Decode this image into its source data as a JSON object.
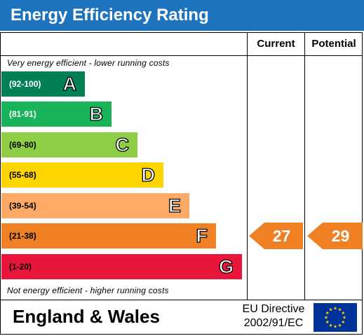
{
  "title": "Energy Efficiency Rating",
  "columns": {
    "current": "Current",
    "potential": "Potential"
  },
  "top_caption": "Very energy efficient - lower running costs",
  "bottom_caption": "Not energy efficient - higher running costs",
  "bands": [
    {
      "range": "(92-100)",
      "letter": "A",
      "color": "#008054",
      "range_color": "#ffffff"
    },
    {
      "range": "(81-91)",
      "letter": "B",
      "color": "#19b459",
      "range_color": "#ffffff"
    },
    {
      "range": "(69-80)",
      "letter": "C",
      "color": "#8dce46",
      "range_color": "#000000"
    },
    {
      "range": "(55-68)",
      "letter": "D",
      "color": "#ffd500",
      "range_color": "#000000"
    },
    {
      "range": "(39-54)",
      "letter": "E",
      "color": "#fcaa65",
      "range_color": "#000000"
    },
    {
      "range": "(21-38)",
      "letter": "F",
      "color": "#ef8023",
      "range_color": "#000000"
    },
    {
      "range": "(1-20)",
      "letter": "G",
      "color": "#e9153b",
      "range_color": "#000000"
    }
  ],
  "ratings": {
    "current": {
      "value": "27",
      "band": "F",
      "color": "#ef8023"
    },
    "potential": {
      "value": "29",
      "band": "F",
      "color": "#ef8023"
    }
  },
  "footer": {
    "region": "England & Wales",
    "directive_line1": "EU Directive",
    "directive_line2": "2002/91/EC",
    "flag_icon": "eu-flag-icon"
  }
}
